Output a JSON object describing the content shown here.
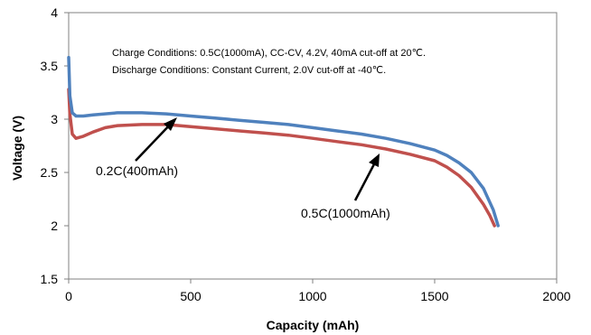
{
  "chart_data": {
    "type": "line",
    "xlabel": "Capacity (mAh)",
    "ylabel": "Voltage (V)",
    "xlim": [
      0,
      2000
    ],
    "ylim": [
      1.5,
      4
    ],
    "xticks": [
      "0",
      "500",
      "1000",
      "1500",
      "2000"
    ],
    "yticks": [
      "1.5",
      "2",
      "2.5",
      "3",
      "3.5",
      "4"
    ],
    "grid": false,
    "annotations": [
      "Charge Conditions: 0.5C(1000mA), CC-CV, 4.2V, 40mA cut-off at 20℃.",
      "Discharge Conditions: Constant Current,  2.0V cut-off at -40℃."
    ],
    "series": [
      {
        "name": "0.2C(400mAh)",
        "color": "#4f81bd",
        "x": [
          0,
          5,
          15,
          30,
          60,
          100,
          200,
          300,
          400,
          500,
          600,
          700,
          800,
          900,
          1000,
          1100,
          1200,
          1300,
          1400,
          1500,
          1550,
          1600,
          1650,
          1700,
          1740,
          1760
        ],
        "y": [
          3.58,
          3.22,
          3.06,
          3.03,
          3.03,
          3.04,
          3.06,
          3.06,
          3.05,
          3.03,
          3.01,
          2.99,
          2.97,
          2.95,
          2.92,
          2.89,
          2.86,
          2.82,
          2.77,
          2.71,
          2.66,
          2.59,
          2.5,
          2.35,
          2.15,
          2.0
        ]
      },
      {
        "name": "0.5C(1000mAh)",
        "color": "#c0504d",
        "x": [
          0,
          5,
          15,
          30,
          60,
          100,
          150,
          200,
          300,
          400,
          500,
          600,
          700,
          800,
          900,
          1000,
          1100,
          1200,
          1300,
          1400,
          1500,
          1550,
          1600,
          1650,
          1700,
          1725,
          1745
        ],
        "y": [
          3.28,
          3.05,
          2.86,
          2.82,
          2.84,
          2.88,
          2.92,
          2.94,
          2.95,
          2.95,
          2.93,
          2.91,
          2.89,
          2.87,
          2.85,
          2.82,
          2.79,
          2.76,
          2.72,
          2.67,
          2.61,
          2.55,
          2.47,
          2.36,
          2.2,
          2.1,
          2.0
        ]
      }
    ]
  }
}
